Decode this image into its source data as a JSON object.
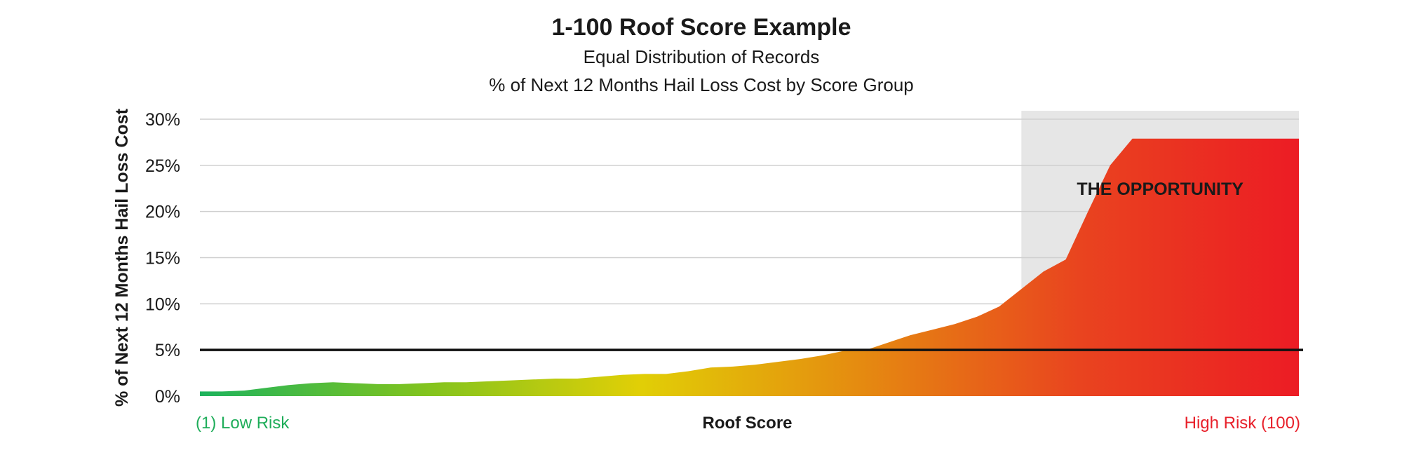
{
  "chart_data": {
    "type": "area",
    "title": "1-100 Roof Score Example",
    "subtitle_1": "Equal Distribution of Records",
    "subtitle_2": "% of Next 12 Months Hail Loss Cost by Score Group",
    "xlabel": "Roof Score",
    "ylabel": "% of Next 12 Months Hail Loss Cost",
    "x_start_label": "(1) Low Risk",
    "x_end_label": "High Risk (100)",
    "ylim": [
      0,
      30
    ],
    "yticks": [
      "0%",
      "5%",
      "10%",
      "15%",
      "20%",
      "25%",
      "30%"
    ],
    "grid": true,
    "series": [
      {
        "x": [
          1,
          3,
          5,
          7,
          9,
          11,
          13,
          15,
          17,
          19,
          21,
          23,
          25,
          27,
          29,
          31,
          33,
          35,
          37,
          39,
          41,
          43,
          45,
          47,
          49,
          51,
          53,
          55,
          57,
          59,
          61,
          63,
          65,
          67,
          69,
          71,
          73,
          75,
          77,
          79,
          81,
          83,
          85,
          87,
          89,
          91,
          93,
          95,
          97,
          99,
          100
        ],
        "values": [
          0.5,
          0.5,
          0.6,
          0.9,
          1.2,
          1.4,
          1.5,
          1.4,
          1.3,
          1.3,
          1.4,
          1.5,
          1.5,
          1.6,
          1.7,
          1.8,
          1.9,
          1.9,
          2.1,
          2.3,
          2.4,
          2.4,
          2.7,
          3.1,
          3.2,
          3.4,
          3.7,
          4.0,
          4.4,
          4.9,
          5.0,
          5.8,
          6.6,
          7.2,
          7.8,
          8.6,
          9.7,
          11.6,
          13.5,
          14.8,
          20.0,
          25.0,
          27.9,
          27.9,
          27.9,
          27.9,
          27.9,
          27.9,
          27.9,
          27.9,
          27.9
        ]
      }
    ],
    "gradient_colors": [
      "#1db35d",
      "#7fc31f",
      "#e1cf06",
      "#e58b10",
      "#e9441f",
      "#ec1c24"
    ],
    "reference_line": {
      "y": 5,
      "color": "#111111"
    },
    "highlight": {
      "x_from": 75,
      "x_to": 100,
      "label": "THE OPPORTUNITY",
      "color": "#e6e6e6"
    },
    "colors": {
      "low_risk": "#1fad5a",
      "high_risk": "#e8202a",
      "grid": "#cfcfcf"
    }
  }
}
